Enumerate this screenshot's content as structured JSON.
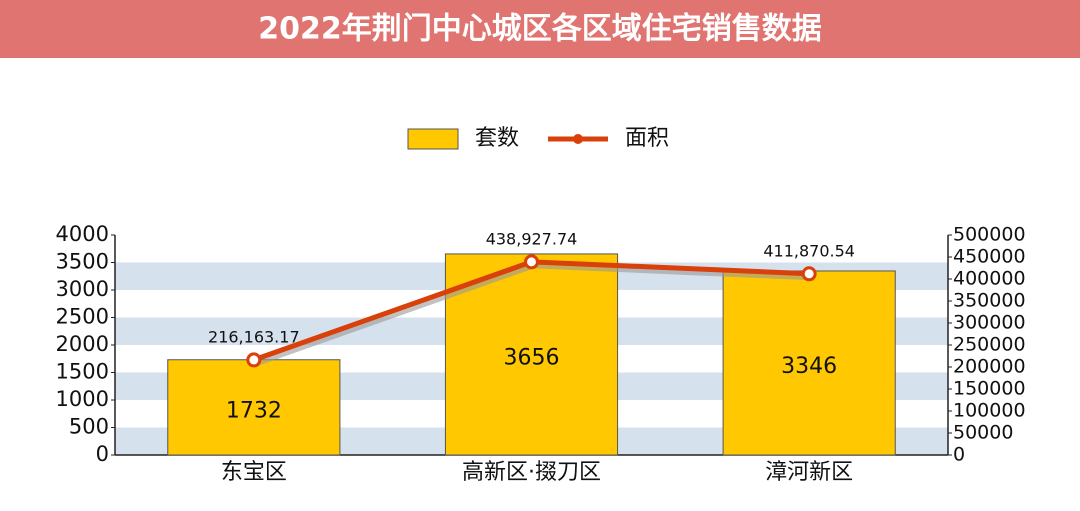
{
  "chart_data": {
    "type": "bar",
    "title": "2022年荆门中心城区各区域住宅销售数据",
    "categories": [
      "东宝区",
      "高新区·掇刀区",
      "漳河新区"
    ],
    "series": [
      {
        "name": "套数",
        "type": "bar",
        "color": "#ffc800",
        "values": [
          1732,
          3656,
          3346
        ]
      },
      {
        "name": "面积",
        "type": "line",
        "axis": "y2",
        "color": "#d9400a",
        "values": [
          216163.17,
          438927.74,
          411870.54
        ],
        "value_labels": [
          "216,163.17",
          "438,927.74",
          "411,870.54"
        ]
      }
    ],
    "ylim": [
      0,
      4000
    ],
    "yticks": [
      0,
      500,
      1000,
      1500,
      2000,
      2500,
      3000,
      3500,
      4000
    ],
    "y2lim": [
      0,
      500000
    ],
    "y2ticks": [
      0,
      50000,
      100000,
      150000,
      200000,
      250000,
      300000,
      350000,
      400000,
      450000,
      500000
    ],
    "grid": true,
    "legend": "top"
  }
}
